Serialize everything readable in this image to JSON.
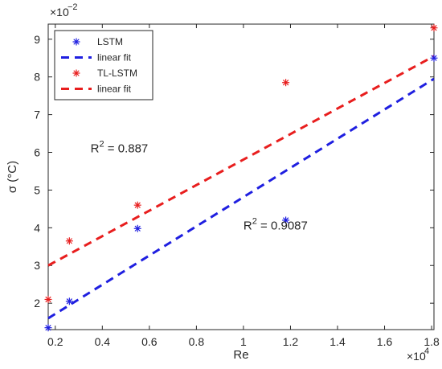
{
  "chart_data": {
    "type": "scatter",
    "xlabel": "Re",
    "ylabel": "σ (°C)",
    "x_exponent_label": "×10",
    "x_exponent": "4",
    "y_exponent_label": "×10",
    "y_exponent": "−2",
    "xlim": [
      0.17,
      1.81
    ],
    "ylim": [
      1.3,
      9.4
    ],
    "x_ticks": [
      0.2,
      0.4,
      0.6,
      0.8,
      1,
      1.2,
      1.4,
      1.6,
      1.8
    ],
    "x_tick_labels": [
      "0.2",
      "0.4",
      "0.6",
      "0.8",
      "1",
      "1.2",
      "1.4",
      "1.6",
      "1.8"
    ],
    "y_ticks": [
      2,
      3,
      4,
      5,
      6,
      7,
      8,
      9
    ],
    "y_tick_labels": [
      "2",
      "3",
      "4",
      "5",
      "6",
      "7",
      "8",
      "9"
    ],
    "grid": false,
    "legend_position": "top-left",
    "series": [
      {
        "name": "LSTM",
        "marker": "asterisk",
        "color": "#1f1fe0",
        "x": [
          0.17,
          0.26,
          0.55,
          1.18,
          1.81
        ],
        "y": [
          1.35,
          2.05,
          3.98,
          4.2,
          8.5
        ]
      },
      {
        "name": "linear fit",
        "style": "dashed",
        "color": "#1f1fe0",
        "x": [
          0.17,
          1.81
        ],
        "y": [
          1.6,
          7.95
        ]
      },
      {
        "name": "TL-LSTM",
        "marker": "asterisk",
        "color": "#e81e1e",
        "x": [
          0.17,
          0.26,
          0.55,
          1.18,
          1.81
        ],
        "y": [
          2.1,
          3.65,
          4.6,
          7.85,
          9.3
        ]
      },
      {
        "name": "linear fit",
        "style": "dashed",
        "color": "#e81e1e",
        "x": [
          0.17,
          1.81
        ],
        "y": [
          3.0,
          8.55
        ]
      }
    ],
    "annotations": [
      {
        "text_main": "R",
        "text_sup": "2",
        "text_rest": " = 0.887",
        "x": 0.35,
        "y": 6.0
      },
      {
        "text_main": "R",
        "text_sup": "2",
        "text_rest": " = 0.9087",
        "x": 1.0,
        "y": 3.95
      }
    ]
  }
}
